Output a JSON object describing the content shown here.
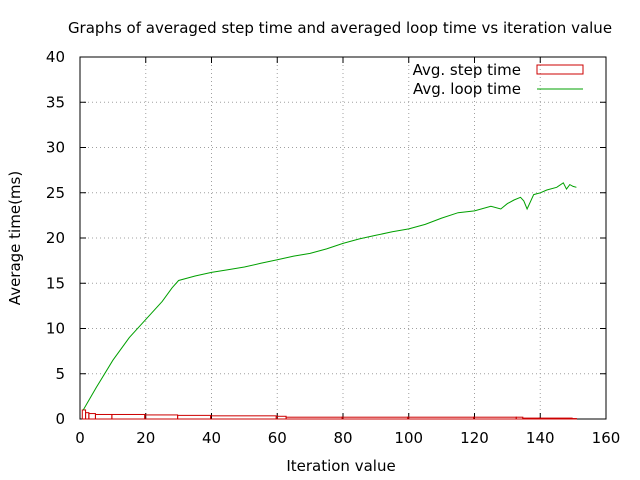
{
  "chart_data": {
    "type": "line",
    "title": "Graphs of averaged step time and averaged loop time vs iteration value",
    "xlabel": "Iteration value",
    "ylabel": "Average time(ms)",
    "xlim": [
      0,
      160
    ],
    "ylim": [
      0,
      40
    ],
    "xticks": [
      0,
      20,
      40,
      60,
      80,
      100,
      120,
      140,
      160
    ],
    "yticks": [
      0,
      5,
      10,
      15,
      20,
      25,
      30,
      35,
      40
    ],
    "grid": true,
    "legend_position": "top-right",
    "series": [
      {
        "name": "Avg. step time",
        "style": "boxes",
        "color": "#cc0000",
        "x": [
          1,
          2,
          3,
          5,
          10,
          20,
          30,
          40,
          60,
          63,
          80,
          100,
          120,
          133,
          135,
          140,
          150
        ],
        "y": [
          1.0,
          0.7,
          0.6,
          0.5,
          0.5,
          0.45,
          0.4,
          0.35,
          0.3,
          0.2,
          0.2,
          0.2,
          0.2,
          0.2,
          0.1,
          0.1,
          0.05
        ]
      },
      {
        "name": "Avg. loop time",
        "style": "line",
        "color": "#00a000",
        "x": [
          1,
          5,
          10,
          15,
          20,
          25,
          28,
          30,
          35,
          40,
          45,
          50,
          55,
          60,
          65,
          70,
          75,
          80,
          85,
          90,
          95,
          100,
          105,
          110,
          115,
          120,
          125,
          128,
          130,
          132,
          134,
          135,
          136,
          138,
          140,
          142,
          145,
          147,
          148,
          149,
          150,
          151
        ],
        "y": [
          1.0,
          3.5,
          6.5,
          9.0,
          11.0,
          13.0,
          14.5,
          15.3,
          15.8,
          16.2,
          16.5,
          16.8,
          17.2,
          17.6,
          18.0,
          18.3,
          18.8,
          19.4,
          19.9,
          20.3,
          20.7,
          21.0,
          21.5,
          22.2,
          22.8,
          23.0,
          23.5,
          23.2,
          23.8,
          24.2,
          24.5,
          24.1,
          23.2,
          24.8,
          25.0,
          25.3,
          25.6,
          26.1,
          25.4,
          25.9,
          25.7,
          25.6
        ]
      }
    ]
  }
}
